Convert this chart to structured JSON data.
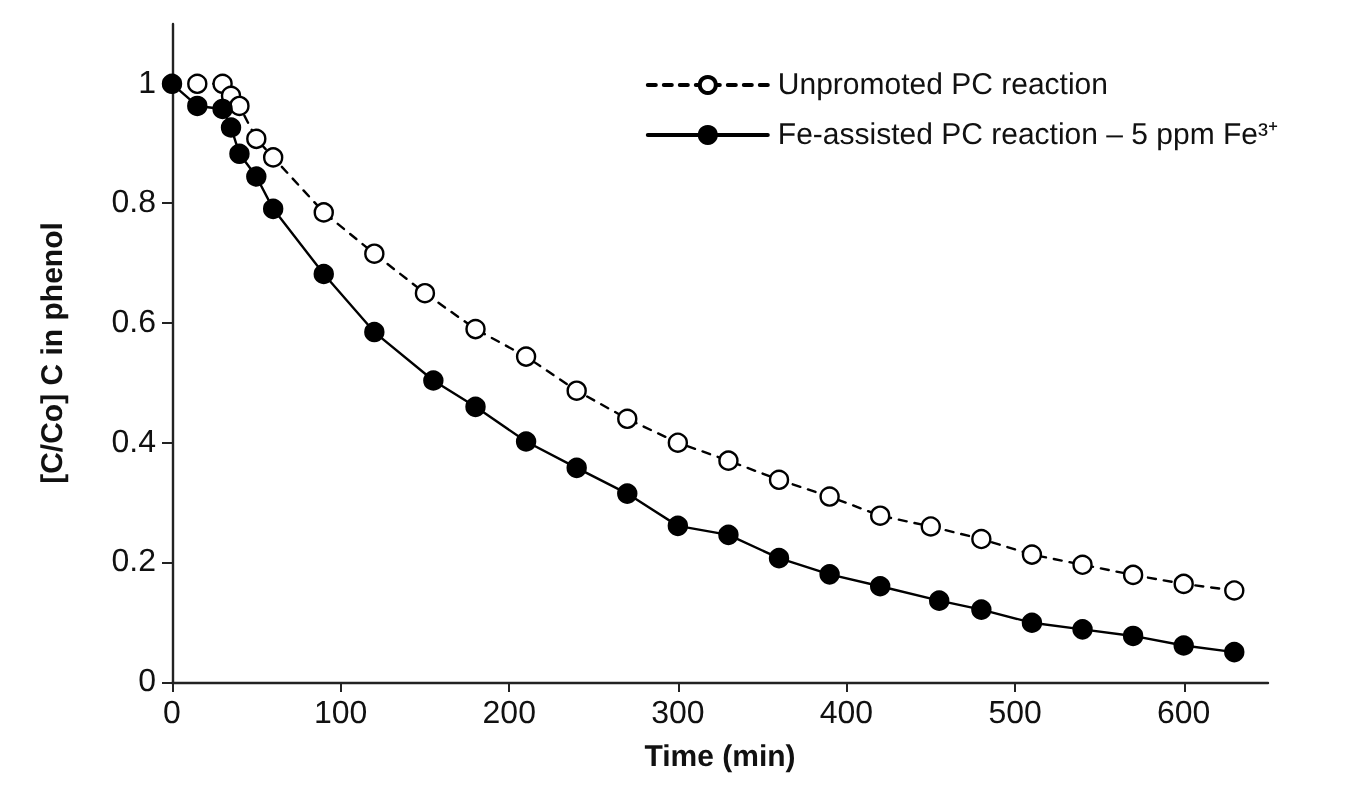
{
  "chart_data": {
    "type": "line",
    "xlabel": "Time (min)",
    "ylabel": "[C/Co] C in phenol",
    "xlim": [
      0,
      650
    ],
    "xticks": [
      0,
      100,
      200,
      300,
      400,
      500,
      600
    ],
    "ylim": [
      0,
      1.1
    ],
    "yticks": [
      0,
      0.2,
      0.4,
      0.6,
      0.8,
      1
    ],
    "grid": false,
    "legend": "top right",
    "marker": "circle",
    "series": [
      {
        "name": "Unpromoted PC reaction",
        "color": "#000000",
        "line_style": "dashed",
        "x": [
          15,
          30,
          35,
          40,
          50,
          60,
          90,
          120,
          150,
          180,
          210,
          240,
          270,
          300,
          330,
          360,
          390,
          420,
          450,
          480,
          510,
          540,
          570,
          600,
          630
        ],
        "values": [
          1.0,
          1.0,
          0.98,
          0.963,
          0.908,
          0.877,
          0.785,
          0.716,
          0.65,
          0.59,
          0.544,
          0.487,
          0.44,
          0.4,
          0.37,
          0.338,
          0.31,
          0.278,
          0.26,
          0.239,
          0.213,
          0.196,
          0.179,
          0.164,
          0.153
        ]
      },
      {
        "name": "Fe-assisted PC reaction – 5 ppm Fe³⁺",
        "color": "#000000",
        "line_style": "solid",
        "x": [
          0,
          15,
          30,
          35,
          40,
          50,
          60,
          90,
          120,
          155,
          180,
          210,
          240,
          270,
          300,
          330,
          360,
          390,
          420,
          455,
          480,
          510,
          540,
          570,
          600,
          630
        ],
        "values": [
          1.0,
          0.963,
          0.958,
          0.927,
          0.883,
          0.845,
          0.791,
          0.682,
          0.585,
          0.504,
          0.46,
          0.402,
          0.358,
          0.315,
          0.261,
          0.246,
          0.207,
          0.18,
          0.16,
          0.136,
          0.121,
          0.099,
          0.088,
          0.077,
          0.061,
          0.05
        ]
      }
    ]
  }
}
